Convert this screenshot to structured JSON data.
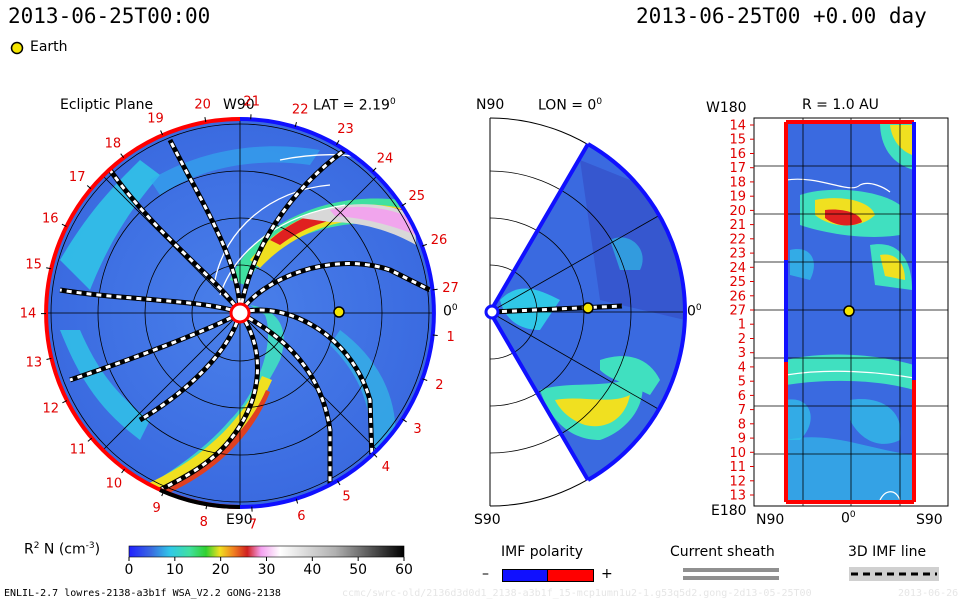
{
  "header": {
    "date_left": "2013-06-25T00:00",
    "date_right": "2013-06-25T00 +0.00 day",
    "earth_legend": "Earth"
  },
  "ecliptic": {
    "title": "Ecliptic Plane",
    "lat_label": "LAT = 2.19",
    "lat_deg": "0",
    "top_label": "W90",
    "bottom_label": "E90",
    "right_label": "0",
    "right_deg": "0",
    "carrington_ticks": [
      "1",
      "2",
      "3",
      "4",
      "5",
      "6",
      "7",
      "8",
      "9",
      "10",
      "11",
      "12",
      "13",
      "14",
      "15",
      "16",
      "17",
      "18",
      "19",
      "20",
      "21",
      "22",
      "23",
      "24",
      "25",
      "26",
      "27"
    ]
  },
  "meridional": {
    "top_left": "N90",
    "lon_label": "LON = 0",
    "lon_deg": "0",
    "bottom_left": "S90",
    "right_label": "0",
    "right_deg": "0"
  },
  "sphere": {
    "title": "R = 1.0 AU",
    "top_left": "W180",
    "bottom_left": "E180",
    "x_labels": [
      "N90",
      "0",
      "S90"
    ],
    "x_deg": "0",
    "y_ticks": [
      "14",
      "15",
      "16",
      "17",
      "18",
      "19",
      "20",
      "21",
      "22",
      "23",
      "24",
      "25",
      "26",
      "27",
      "1",
      "2",
      "3",
      "4",
      "5",
      "6",
      "7",
      "8",
      "9",
      "10",
      "11",
      "12",
      "13"
    ]
  },
  "colorbar": {
    "label_main": "R",
    "label_sup": "2",
    "label_tail": " N (cm",
    "label_exp": "-3",
    "label_close": ")",
    "ticks": [
      "0",
      "10",
      "20",
      "30",
      "40",
      "50",
      "60"
    ],
    "min": 0,
    "max": 60
  },
  "legend": {
    "imf_title": "IMF polarity",
    "imf_minus": "–",
    "imf_plus": "+",
    "current_sheath": "Current sheath",
    "imf_line": "3D IMF line"
  },
  "footer": {
    "model": "ENLIL-2.7 lowres-2138-a3b1f WSA_V2.2 GONG-2138",
    "path": "ccmc/swrc-old/2136d3d0d1_2138-a3b1f_15-mcp1umn1u2-1.g53q5d2.gong-2d13-05-25T00",
    "date_small": "2013-06-26"
  },
  "colors": {
    "background_blue": "#3a6fe0",
    "polarity_negative": "#1010ff",
    "polarity_positive": "#ff0000",
    "earth": "#f5e600",
    "tick_red": "#e00000"
  }
}
